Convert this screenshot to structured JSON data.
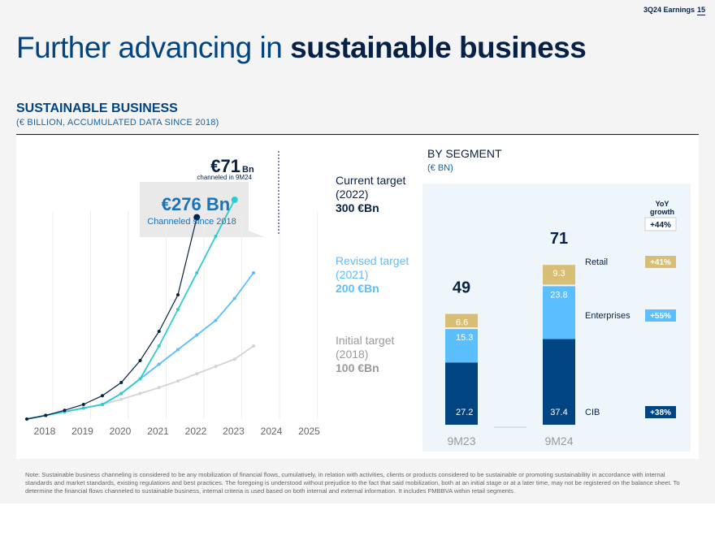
{
  "header": {
    "tag": "3Q24 Earnings",
    "page": "15"
  },
  "title": {
    "regular": "Further advancing in ",
    "bold": "sustainable business"
  },
  "section": {
    "title": "SUSTAINABLE BUSINESS",
    "subtitle": "(€ BILLION, ACCUMULATED DATA SINCE 2018)"
  },
  "callouts": {
    "current_value": "€71",
    "current_unit": "Bn",
    "current_label": "channeled in 9M24",
    "total_value": "€276 Bn",
    "total_label": "Channeled since 2018"
  },
  "targets": [
    {
      "line1": "Current target",
      "line2": "(2022)",
      "line3": "300 €Bn",
      "color": "#2dcccd"
    },
    {
      "line1": "Revised target",
      "line2": "(2021)",
      "line3": "200 €Bn",
      "color": "#5bbeff"
    },
    {
      "line1": "Initial target",
      "line2": "(2018)",
      "line3": "100 €Bn",
      "color": "#999999"
    }
  ],
  "colors": {
    "actual": "#072146",
    "current_target": "#2dcccd",
    "revised_target": "#5bbeff",
    "initial_target": "#d3d3d3",
    "cib": "#004481",
    "enterprises": "#5bbeff",
    "retail": "#d8be75",
    "total_box": "#e9e9e9"
  },
  "chart_data": [
    {
      "type": "line",
      "x": [
        "2018",
        "2019",
        "2020",
        "2021",
        "2022",
        "2023",
        "2024",
        "2025"
      ],
      "series": [
        {
          "key": "actual",
          "points": [
            [
              2018,
              0
            ],
            [
              2018.5,
              5
            ],
            [
              2019,
              12
            ],
            [
              2019.5,
              20
            ],
            [
              2020,
              32
            ],
            [
              2020.5,
              50
            ],
            [
              2021,
              80
            ],
            [
              2021.5,
              120
            ],
            [
              2022,
              170
            ],
            [
              2022.5,
              276
            ]
          ]
        },
        {
          "key": "current_target",
          "points": [
            [
              2018,
              0
            ],
            [
              2018.5,
              5
            ],
            [
              2019,
              10
            ],
            [
              2019.5,
              15
            ],
            [
              2020,
              20
            ],
            [
              2020.5,
              35
            ],
            [
              2021,
              55
            ],
            [
              2021.5,
              100
            ],
            [
              2022,
              150
            ],
            [
              2022.5,
              200
            ],
            [
              2023,
              250
            ],
            [
              2023.5,
              300
            ]
          ]
        },
        {
          "key": "revised_target",
          "points": [
            [
              2018,
              0
            ],
            [
              2018.5,
              5
            ],
            [
              2019,
              10
            ],
            [
              2019.5,
              15
            ],
            [
              2020,
              20
            ],
            [
              2020.5,
              35
            ],
            [
              2021,
              55
            ],
            [
              2021.5,
              75
            ],
            [
              2022,
              95
            ],
            [
              2022.5,
              115
            ],
            [
              2023,
              135
            ],
            [
              2023.5,
              165
            ],
            [
              2024,
              200
            ]
          ]
        },
        {
          "key": "initial_target",
          "points": [
            [
              2018,
              0
            ],
            [
              2018.5,
              5
            ],
            [
              2019,
              10
            ],
            [
              2019.5,
              15
            ],
            [
              2020,
              20
            ],
            [
              2020.5,
              27
            ],
            [
              2021,
              35
            ],
            [
              2021.5,
              43
            ],
            [
              2022,
              52
            ],
            [
              2022.5,
              62
            ],
            [
              2023,
              72
            ],
            [
              2023.5,
              82
            ],
            [
              2024,
              100
            ]
          ]
        }
      ]
    },
    {
      "type": "bar",
      "stacked": true,
      "title": "BY SEGMENT",
      "subtitle": "(€ BN)",
      "categories": [
        "9M23",
        "9M24"
      ],
      "totals": [
        "49",
        "71"
      ],
      "series": [
        {
          "name": "CIB",
          "values": [
            27.2,
            37.4
          ],
          "labels": [
            "27.2",
            "37.4"
          ],
          "growth": "+38%"
        },
        {
          "name": "Enterprises",
          "values": [
            15.3,
            23.8
          ],
          "labels": [
            "15.3",
            "23.8"
          ],
          "growth": "+55%"
        },
        {
          "name": "Retail",
          "values": [
            6.6,
            9.3
          ],
          "labels": [
            "6.6",
            "9.3"
          ],
          "growth": "+41%"
        }
      ],
      "growth_header": [
        "YoY",
        "growth"
      ],
      "total_growth": "+44%"
    }
  ],
  "note": "Note: Sustainable business channeling is considered to be any mobilization of financial flows, cumulatively, in relation with activities, clients or products considered to be sustainable or promoting sustainability in accordance with internal standards and market standards, existing regulations and best practices. The foregoing is understood without prejudice to the fact that said mobilization, both at an initial stage or at a later time, may not be registered on the balance sheet. To determine the financial flows channeled to sustainable business, internal criteria is used based on both internal and external information. It includes FMBBVA within retail segments."
}
